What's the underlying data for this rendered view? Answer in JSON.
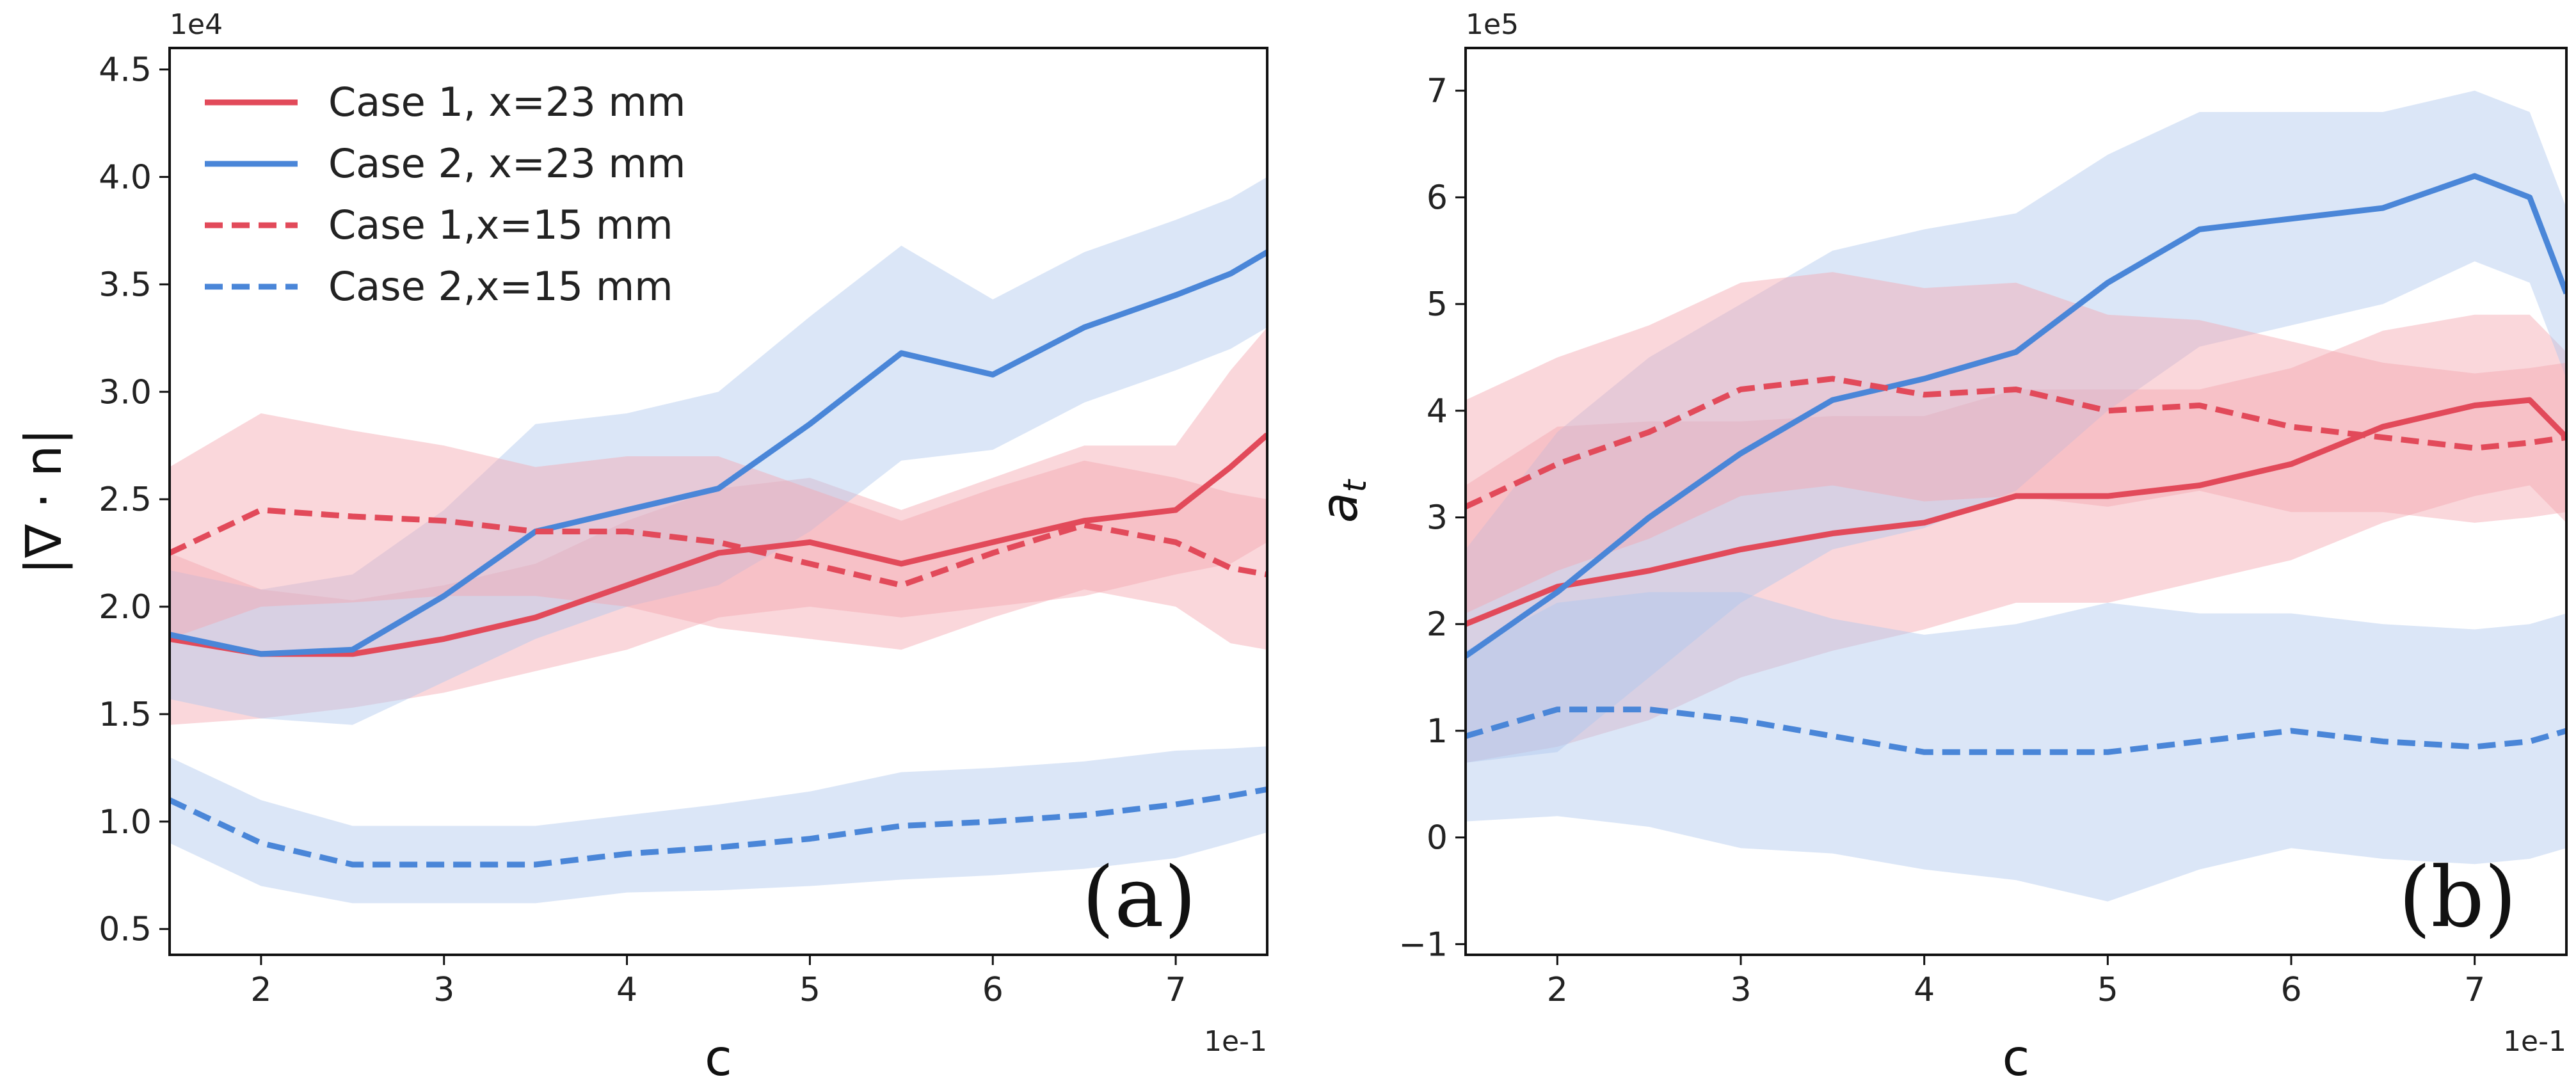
{
  "colors": {
    "case1": "#E24A5A",
    "case2": "#4A86D8",
    "band_case1": "#F4A6B0",
    "band_case2": "#AFC8EE"
  },
  "chart_data": [
    {
      "type": "line",
      "panel_tag": "(a)",
      "xlabel": "c",
      "ylabel": "|∇ · n|",
      "x_offset": "1e-1",
      "y_offset": "1e4",
      "xlim": [
        1.5,
        7.5
      ],
      "ylim": [
        0.38,
        4.6
      ],
      "xticks": [
        2,
        3,
        4,
        5,
        6,
        7
      ],
      "yticks": [
        0.5,
        1.0,
        1.5,
        2.0,
        2.5,
        3.0,
        3.5,
        4.0,
        4.5
      ],
      "ytick_labels": [
        "0.5",
        "1.0",
        "1.5",
        "2.0",
        "2.5",
        "3.0",
        "3.5",
        "4.0",
        "4.5"
      ],
      "legend": [
        "Case 1, x=23 mm",
        "Case 2, x=23 mm",
        "Case 1,x=15 mm",
        "Case 2,x=15 mm"
      ],
      "x": [
        1.5,
        2.0,
        2.5,
        3.0,
        3.5,
        4.0,
        4.5,
        5.0,
        5.5,
        6.0,
        6.5,
        7.0,
        7.3,
        7.5
      ],
      "series": [
        {
          "name": "Case 1, x=23 mm",
          "style": "solid",
          "color": "case1",
          "values": [
            1.85,
            1.78,
            1.78,
            1.85,
            1.95,
            2.1,
            2.25,
            2.3,
            2.2,
            2.3,
            2.4,
            2.45,
            2.65,
            2.8
          ],
          "band": [
            0.4,
            0.3,
            0.25,
            0.25,
            0.25,
            0.3,
            0.3,
            0.3,
            0.25,
            0.3,
            0.35,
            0.3,
            0.45,
            0.5
          ]
        },
        {
          "name": "Case 2, x=23 mm",
          "style": "solid",
          "color": "case2",
          "values": [
            1.87,
            1.78,
            1.8,
            2.05,
            2.35,
            2.45,
            2.55,
            2.85,
            3.18,
            3.08,
            3.3,
            3.45,
            3.55,
            3.65
          ],
          "band": [
            0.3,
            0.3,
            0.35,
            0.4,
            0.5,
            0.45,
            0.45,
            0.5,
            0.5,
            0.35,
            0.35,
            0.35,
            0.35,
            0.35
          ]
        },
        {
          "name": "Case 1,x=15 mm",
          "style": "dashed",
          "color": "case1",
          "values": [
            2.25,
            2.45,
            2.42,
            2.4,
            2.35,
            2.35,
            2.3,
            2.2,
            2.1,
            2.25,
            2.38,
            2.3,
            2.18,
            2.15
          ],
          "band": [
            0.4,
            0.45,
            0.4,
            0.35,
            0.3,
            0.35,
            0.4,
            0.35,
            0.3,
            0.3,
            0.3,
            0.3,
            0.35,
            0.35
          ]
        },
        {
          "name": "Case 2,x=15 mm",
          "style": "dashed",
          "color": "case2",
          "values": [
            1.1,
            0.9,
            0.8,
            0.8,
            0.8,
            0.85,
            0.88,
            0.92,
            0.98,
            1.0,
            1.03,
            1.08,
            1.12,
            1.15
          ],
          "band": [
            0.2,
            0.2,
            0.18,
            0.18,
            0.18,
            0.18,
            0.2,
            0.22,
            0.25,
            0.25,
            0.25,
            0.25,
            0.22,
            0.2
          ]
        }
      ]
    },
    {
      "type": "line",
      "panel_tag": "(b)",
      "xlabel": "c",
      "ylabel": "a_t",
      "x_offset": "1e-1",
      "y_offset": "1e5",
      "xlim": [
        1.5,
        7.5
      ],
      "ylim": [
        -1.1,
        7.4
      ],
      "xticks": [
        2,
        3,
        4,
        5,
        6,
        7
      ],
      "yticks": [
        -1,
        0,
        1,
        2,
        3,
        4,
        5,
        6,
        7
      ],
      "ytick_labels": [
        "−1",
        "0",
        "1",
        "2",
        "3",
        "4",
        "5",
        "6",
        "7"
      ],
      "x": [
        1.5,
        2.0,
        2.5,
        3.0,
        3.5,
        4.0,
        4.5,
        5.0,
        5.5,
        6.0,
        6.5,
        7.0,
        7.3,
        7.5
      ],
      "series": [
        {
          "name": "Case 1, x=23 mm",
          "style": "solid",
          "color": "case1",
          "values": [
            2.0,
            2.35,
            2.5,
            2.7,
            2.85,
            2.95,
            3.2,
            3.2,
            3.3,
            3.5,
            3.85,
            4.05,
            4.1,
            3.75
          ],
          "band": [
            1.3,
            1.5,
            1.4,
            1.2,
            1.1,
            1.0,
            1.0,
            1.0,
            0.9,
            0.9,
            0.9,
            0.85,
            0.8,
            0.8
          ]
        },
        {
          "name": "Case 2, x=23 mm",
          "style": "solid",
          "color": "case2",
          "values": [
            1.7,
            2.3,
            3.0,
            3.6,
            4.1,
            4.3,
            4.55,
            5.2,
            5.7,
            5.8,
            5.9,
            6.2,
            6.0,
            5.1
          ],
          "band": [
            1.0,
            1.5,
            1.5,
            1.4,
            1.4,
            1.4,
            1.3,
            1.2,
            1.1,
            1.0,
            0.9,
            0.8,
            0.8,
            0.8
          ]
        },
        {
          "name": "Case 1,x=15 mm",
          "style": "dashed",
          "color": "case1",
          "values": [
            3.1,
            3.5,
            3.8,
            4.2,
            4.3,
            4.15,
            4.2,
            4.0,
            4.05,
            3.85,
            3.75,
            3.65,
            3.7,
            3.75
          ],
          "band": [
            1.0,
            1.0,
            1.0,
            1.0,
            1.0,
            1.0,
            1.0,
            0.9,
            0.8,
            0.8,
            0.7,
            0.7,
            0.7,
            0.7
          ]
        },
        {
          "name": "Case 2,x=15 mm",
          "style": "dashed",
          "color": "case2",
          "values": [
            0.95,
            1.2,
            1.2,
            1.1,
            0.95,
            0.8,
            0.8,
            0.8,
            0.9,
            1.0,
            0.9,
            0.85,
            0.9,
            1.0
          ],
          "band": [
            0.8,
            1.0,
            1.1,
            1.2,
            1.1,
            1.1,
            1.2,
            1.4,
            1.2,
            1.1,
            1.1,
            1.1,
            1.1,
            1.1
          ]
        }
      ]
    }
  ]
}
